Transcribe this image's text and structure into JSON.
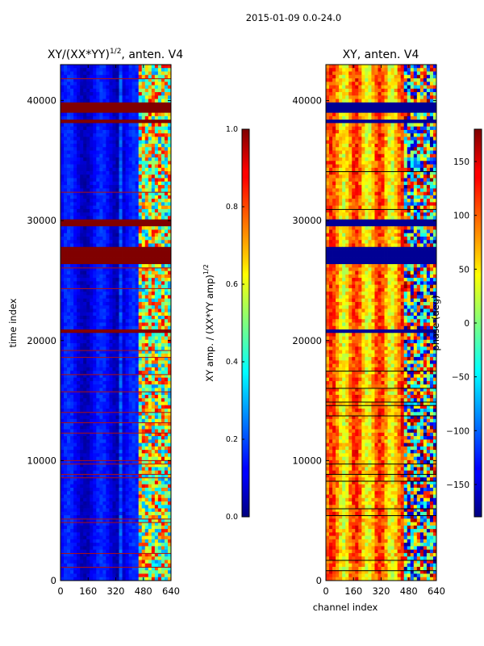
{
  "figure_title": "2015-01-09 0.0-24.0",
  "chart_data": [
    {
      "type": "heatmap",
      "title_main": "XY/(XX*YY)",
      "title_exp": "1/2",
      "title_tail": ", anten. V4",
      "xlabel": "",
      "ylabel": "time index",
      "xlim": [
        0,
        640
      ],
      "ylim": [
        0,
        43000
      ],
      "xticks": [
        0,
        160,
        320,
        480,
        640
      ],
      "yticks": [
        0,
        10000,
        20000,
        30000,
        40000
      ],
      "colormap": "jet",
      "color_range": [
        0.0,
        1.0
      ],
      "colorbar": {
        "label_main": "XY amp. / (XX*YY amp)",
        "label_exp": "1/2",
        "ticks": [
          0.0,
          0.2,
          0.4,
          0.6,
          0.8,
          1.0
        ],
        "tick_labels": [
          "0.0",
          "0.2",
          "0.4",
          "0.6",
          "0.8",
          "1.0"
        ]
      },
      "flagged_time_bands": [
        [
          26500,
          27700
        ],
        [
          29500,
          30000
        ],
        [
          38200,
          38500
        ],
        [
          39100,
          39900
        ],
        [
          20700,
          20900
        ]
      ],
      "flag_value": 1.0,
      "structured_channel_range": [
        460,
        640
      ]
    },
    {
      "type": "heatmap",
      "title_main": "XY, anten. V4",
      "xlabel": "channel index",
      "ylabel": "",
      "xlim": [
        0,
        640
      ],
      "ylim": [
        0,
        43000
      ],
      "xticks": [
        0,
        160,
        320,
        480,
        640
      ],
      "yticks": [
        0,
        10000,
        20000,
        30000,
        40000
      ],
      "colormap": "jet",
      "color_range": [
        -180,
        180
      ],
      "colorbar": {
        "label_main": "phase (deg)",
        "ticks": [
          -150,
          -100,
          -50,
          0,
          50,
          100,
          150
        ],
        "tick_labels": [
          "−150",
          "−100",
          "−50",
          "0",
          "50",
          "100",
          "150"
        ]
      },
      "flagged_time_bands": [
        [
          26500,
          27700
        ],
        [
          29500,
          30000
        ],
        [
          38200,
          38500
        ],
        [
          39100,
          39900
        ],
        [
          20700,
          20900
        ]
      ],
      "flag_value": -180,
      "structured_channel_range": [
        460,
        640
      ]
    }
  ]
}
